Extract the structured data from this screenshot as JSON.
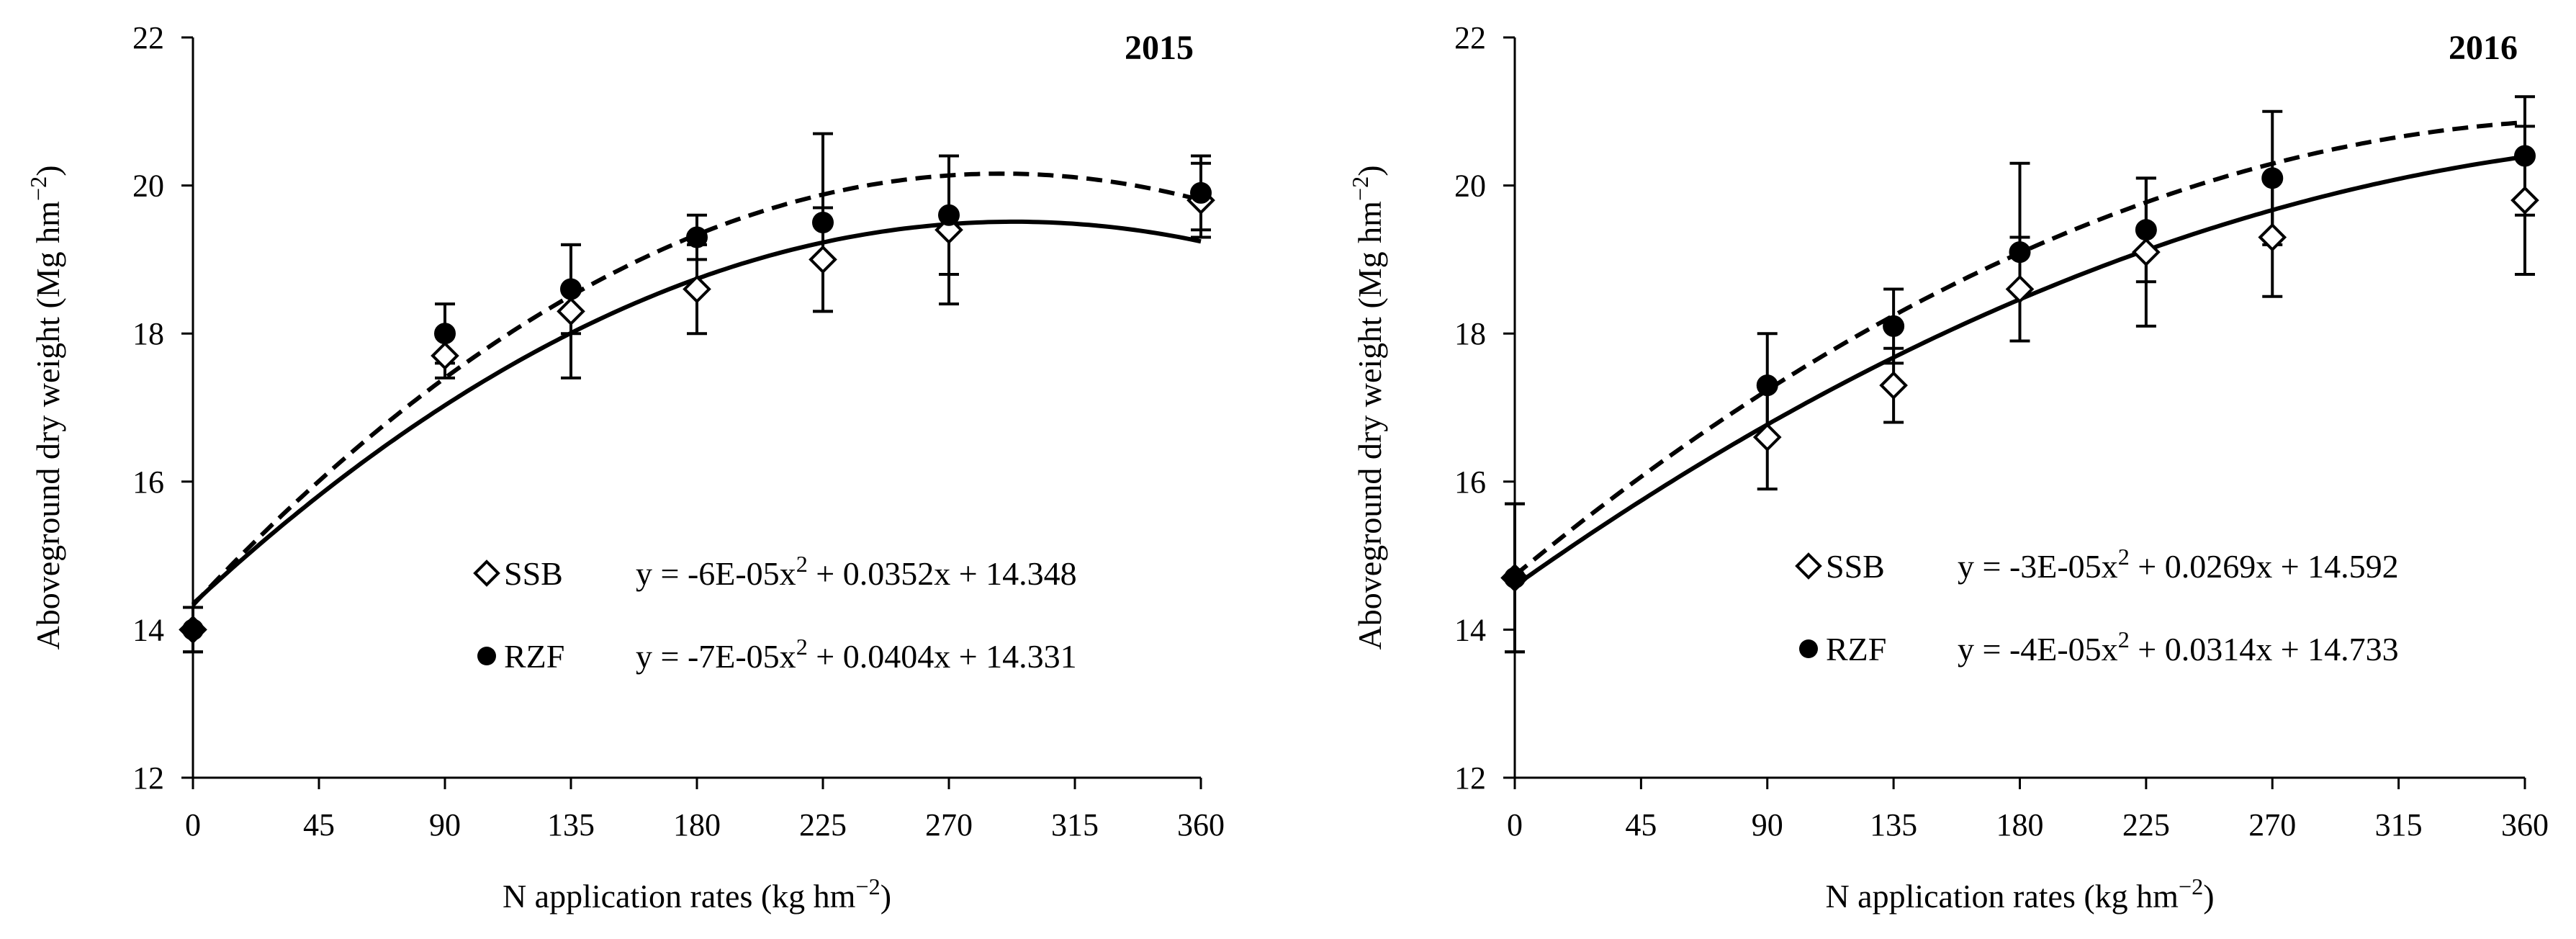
{
  "chart_data": [
    {
      "type": "scatter",
      "title": "2015",
      "xlabel": "N application rates (kg hm⁻²)",
      "ylabel": "Aboveground dry weight (Mg hm⁻²)",
      "xlim": [
        0,
        360
      ],
      "ylim": [
        12,
        22
      ],
      "xticks": [
        0,
        45,
        90,
        135,
        180,
        225,
        270,
        315,
        360
      ],
      "yticks": [
        12,
        14,
        16,
        18,
        20,
        22
      ],
      "grid": false,
      "legend_position": "bottom-right",
      "series": [
        {
          "name": "SSB",
          "marker": "open-diamond",
          "line": "solid",
          "equation": "y = -6E-05x² + 0.0352x + 14.348",
          "coef": {
            "a": -6e-05,
            "b": 0.0352,
            "c": 14.348
          },
          "x": [
            0,
            90,
            135,
            180,
            225,
            270,
            360
          ],
          "y": [
            14.0,
            17.7,
            18.3,
            18.6,
            19.0,
            19.4,
            19.8
          ],
          "err": [
            0.3,
            0.3,
            0.9,
            0.6,
            0.7,
            1.0,
            0.5
          ]
        },
        {
          "name": "RZF",
          "marker": "filled-circle",
          "line": "dashed",
          "equation": "y = -7E-05x² + 0.0404x + 14.331",
          "coef": {
            "a": -7e-05,
            "b": 0.0404,
            "c": 14.331
          },
          "x": [
            0,
            90,
            135,
            180,
            225,
            270,
            360
          ],
          "y": [
            14.0,
            18.0,
            18.6,
            19.3,
            19.5,
            19.6,
            19.9
          ],
          "err": [
            0.3,
            0.4,
            0.6,
            0.3,
            1.2,
            0.8,
            0.5
          ]
        }
      ]
    },
    {
      "type": "scatter",
      "title": "2016",
      "xlabel": "N application rates (kg hm⁻²)",
      "ylabel": "Aboveground dry weight (Mg hm⁻²)",
      "xlim": [
        0,
        360
      ],
      "ylim": [
        12,
        22
      ],
      "xticks": [
        0,
        45,
        90,
        135,
        180,
        225,
        270,
        315,
        360
      ],
      "yticks": [
        12,
        14,
        16,
        18,
        20,
        22
      ],
      "grid": false,
      "legend_position": "bottom-right",
      "series": [
        {
          "name": "SSB",
          "marker": "open-diamond",
          "line": "solid",
          "equation": "y = -3E-05x² + 0.0269x + 14.592",
          "coef": {
            "a": -3e-05,
            "b": 0.0269,
            "c": 14.592
          },
          "x": [
            0,
            90,
            135,
            180,
            225,
            270,
            360
          ],
          "y": [
            14.7,
            16.6,
            17.3,
            18.6,
            19.1,
            19.3,
            19.8
          ],
          "err": [
            1.0,
            0.7,
            0.5,
            0.7,
            1.0,
            0.8,
            1.0
          ]
        },
        {
          "name": "RZF",
          "marker": "filled-circle",
          "line": "dashed",
          "equation": "y = -4E-05x² + 0.0314x + 14.733",
          "coef": {
            "a": -4e-05,
            "b": 0.0314,
            "c": 14.733
          },
          "x": [
            0,
            90,
            135,
            180,
            225,
            270,
            360
          ],
          "y": [
            14.7,
            17.3,
            18.1,
            19.1,
            19.4,
            20.1,
            20.4
          ],
          "err": [
            1.0,
            0.7,
            0.5,
            1.2,
            0.7,
            0.9,
            0.8
          ]
        }
      ]
    }
  ]
}
